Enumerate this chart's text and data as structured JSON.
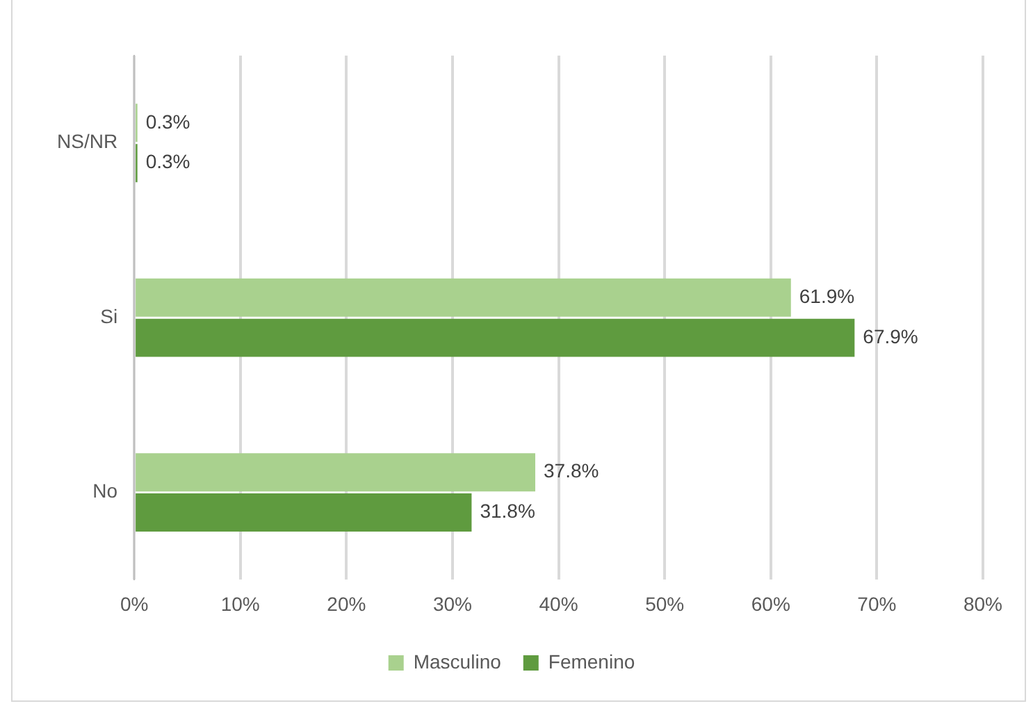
{
  "chart_data": {
    "type": "bar",
    "orientation": "horizontal",
    "categories": [
      "NS/NR",
      "Si",
      "No"
    ],
    "series": [
      {
        "name": "Masculino",
        "color": "#a9d18e",
        "values": [
          0.3,
          61.9,
          37.8
        ],
        "value_labels": [
          "0.3%",
          "61.9%",
          "37.8%"
        ]
      },
      {
        "name": "Femenino",
        "color": "#5f9b3f",
        "values": [
          0.3,
          67.9,
          31.8
        ],
        "value_labels": [
          "0.3%",
          "67.9%",
          "31.8%"
        ]
      }
    ],
    "xlim": [
      0,
      80
    ],
    "xticks": [
      {
        "value": 0,
        "label": "0%"
      },
      {
        "value": 10,
        "label": "10%"
      },
      {
        "value": 20,
        "label": "20%"
      },
      {
        "value": 30,
        "label": "30%"
      },
      {
        "value": 40,
        "label": "40%"
      },
      {
        "value": 50,
        "label": "50%"
      },
      {
        "value": 60,
        "label": "60%"
      },
      {
        "value": 70,
        "label": "70%"
      },
      {
        "value": 80,
        "label": "80%"
      }
    ],
    "grid": "x",
    "legend": "bottom"
  }
}
